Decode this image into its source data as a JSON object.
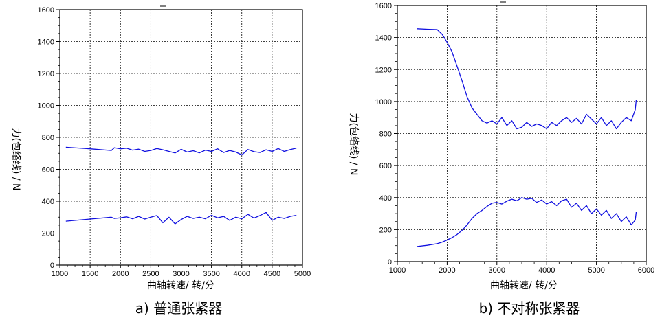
{
  "chart_data": [
    {
      "type": "line",
      "panel_caption": "a)  普通张紧器",
      "xlabel": "曲轴转速/ 转/分",
      "ylabel": "力(包络线) / N",
      "xlim": [
        1000,
        5000
      ],
      "ylim": [
        0,
        1600
      ],
      "xticks": [
        "1000",
        "1500",
        "2000",
        "2500",
        "3000",
        "3500",
        "4000",
        "4500",
        "5000"
      ],
      "yticks": [
        "0",
        "200",
        "400",
        "600",
        "800",
        "1000",
        "1200",
        "1400",
        "1600"
      ],
      "grid": true,
      "line_color": "#1010e0",
      "series": [
        {
          "x": [
            1100,
            1500,
            1850,
            1900,
            2000,
            2100,
            2200,
            2300,
            2400,
            2500,
            2600,
            2700,
            2800,
            2900,
            3000,
            3100,
            3200,
            3300,
            3400,
            3500,
            3600,
            3700,
            3800,
            3900,
            4000,
            4100,
            4200,
            4300,
            4400,
            4500,
            4600,
            4700,
            4800,
            4900
          ],
          "values": [
            738,
            728,
            718,
            735,
            728,
            732,
            720,
            726,
            712,
            718,
            730,
            722,
            712,
            702,
            725,
            708,
            716,
            703,
            720,
            712,
            728,
            705,
            718,
            708,
            690,
            724,
            710,
            705,
            722,
            712,
            730,
            712,
            724,
            732
          ]
        },
        {
          "x": [
            1100,
            1500,
            1850,
            1900,
            2000,
            2100,
            2200,
            2300,
            2400,
            2500,
            2600,
            2700,
            2800,
            2900,
            3000,
            3100,
            3200,
            3300,
            3400,
            3500,
            3600,
            3700,
            3800,
            3900,
            4000,
            4100,
            4200,
            4300,
            4400,
            4500,
            4600,
            4700,
            4800,
            4900
          ],
          "values": [
            275,
            288,
            300,
            292,
            296,
            302,
            290,
            305,
            288,
            300,
            310,
            265,
            300,
            258,
            285,
            305,
            292,
            300,
            290,
            312,
            296,
            305,
            280,
            300,
            290,
            318,
            294,
            310,
            330,
            280,
            300,
            292,
            305,
            312
          ]
        }
      ]
    },
    {
      "type": "line",
      "panel_caption": "b)  不对称张紧器",
      "xlabel": "曲轴转速/ 转/分",
      "ylabel": "力(包络线) / N",
      "xlim": [
        1000,
        6000
      ],
      "ylim": [
        0,
        1600
      ],
      "xticks": [
        "1000",
        "2000",
        "3000",
        "4000",
        "5000",
        "6000"
      ],
      "yticks": [
        "0",
        "200",
        "400",
        "600",
        "800",
        "1000",
        "1200",
        "1400",
        "1600"
      ],
      "grid": true,
      "line_color": "#1010e0",
      "series": [
        {
          "x": [
            1400,
            1600,
            1800,
            1900,
            2000,
            2100,
            2200,
            2300,
            2400,
            2500,
            2600,
            2700,
            2800,
            2900,
            3000,
            3100,
            3200,
            3300,
            3400,
            3500,
            3600,
            3700,
            3800,
            3900,
            4000,
            4100,
            4200,
            4300,
            4400,
            4500,
            4600,
            4700,
            4800,
            4900,
            5000,
            5100,
            5200,
            5300,
            5400,
            5500,
            5600,
            5700,
            5780,
            5800
          ],
          "values": [
            1455,
            1452,
            1450,
            1420,
            1370,
            1310,
            1220,
            1130,
            1030,
            960,
            920,
            880,
            865,
            880,
            860,
            900,
            850,
            880,
            830,
            840,
            870,
            845,
            860,
            850,
            830,
            870,
            850,
            880,
            900,
            870,
            895,
            860,
            920,
            890,
            860,
            900,
            850,
            880,
            830,
            870,
            900,
            880,
            950,
            1010
          ]
        },
        {
          "x": [
            1400,
            1600,
            1800,
            1900,
            2000,
            2100,
            2200,
            2300,
            2400,
            2500,
            2600,
            2700,
            2800,
            2900,
            3000,
            3100,
            3200,
            3300,
            3400,
            3500,
            3600,
            3700,
            3800,
            3900,
            4000,
            4100,
            4200,
            4300,
            4400,
            4500,
            4600,
            4700,
            4800,
            4900,
            5000,
            5100,
            5200,
            5300,
            5400,
            5500,
            5600,
            5700,
            5780,
            5800
          ],
          "values": [
            95,
            102,
            112,
            122,
            135,
            150,
            170,
            195,
            230,
            270,
            300,
            320,
            345,
            365,
            370,
            360,
            378,
            390,
            380,
            400,
            390,
            395,
            370,
            385,
            360,
            375,
            350,
            380,
            390,
            340,
            365,
            320,
            350,
            300,
            330,
            290,
            320,
            270,
            300,
            250,
            280,
            230,
            260,
            310
          ]
        }
      ]
    }
  ]
}
